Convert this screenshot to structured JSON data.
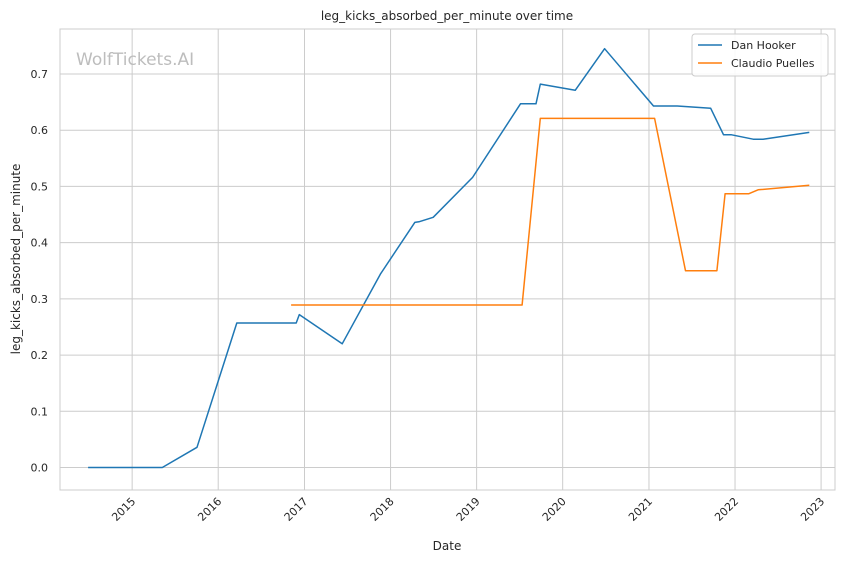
{
  "chart_data": {
    "type": "line",
    "title": "leg_kicks_absorbed_per_minute over time",
    "xlabel": "Date",
    "ylabel": "leg_kicks_absorbed_per_minute",
    "watermark": "WolfTickets.AI",
    "xlim": [
      "2014-03-01",
      "2023-03-01"
    ],
    "ylim": [
      -0.04,
      0.78
    ],
    "x_ticks": [
      "2015",
      "2016",
      "2017",
      "2018",
      "2019",
      "2020",
      "2021",
      "2022",
      "2023"
    ],
    "y_ticks": [
      "0.0",
      "0.1",
      "0.2",
      "0.3",
      "0.4",
      "0.5",
      "0.6",
      "0.7"
    ],
    "grid": true,
    "legend_position": "top-right",
    "series": [
      {
        "name": "Dan Hooker",
        "color": "#1f77b4",
        "points": [
          [
            "2014-06-28",
            0.0
          ],
          [
            "2015-05-09",
            0.0
          ],
          [
            "2015-10-03",
            0.036
          ],
          [
            "2016-03-20",
            0.257
          ],
          [
            "2016-11-27",
            0.257
          ],
          [
            "2016-12-10",
            0.272
          ],
          [
            "2017-06-10",
            0.22
          ],
          [
            "2017-11-19",
            0.344
          ],
          [
            "2018-04-14",
            0.436
          ],
          [
            "2018-05-01",
            0.437
          ],
          [
            "2018-07-01",
            0.445
          ],
          [
            "2018-12-15",
            0.516
          ],
          [
            "2019-07-06",
            0.647
          ],
          [
            "2019-09-10",
            0.647
          ],
          [
            "2019-09-28",
            0.682
          ],
          [
            "2020-02-23",
            0.671
          ],
          [
            "2020-06-27",
            0.745
          ],
          [
            "2021-01-20",
            0.643
          ],
          [
            "2021-05-01",
            0.643
          ],
          [
            "2021-09-20",
            0.639
          ],
          [
            "2021-11-13",
            0.592
          ],
          [
            "2021-12-15",
            0.592
          ],
          [
            "2022-03-19",
            0.584
          ],
          [
            "2022-04-30",
            0.584
          ],
          [
            "2022-11-12",
            0.596
          ]
        ]
      },
      {
        "name": "Claudio Puelles",
        "color": "#ff7f0e",
        "points": [
          [
            "2016-11-05",
            0.289
          ],
          [
            "2019-07-13",
            0.289
          ],
          [
            "2019-09-28",
            0.621
          ],
          [
            "2021-01-25",
            0.621
          ],
          [
            "2021-06-05",
            0.35
          ],
          [
            "2021-10-16",
            0.35
          ],
          [
            "2021-11-20",
            0.487
          ],
          [
            "2022-03-01",
            0.487
          ],
          [
            "2022-04-09",
            0.494
          ],
          [
            "2022-11-12",
            0.502
          ]
        ]
      }
    ]
  }
}
